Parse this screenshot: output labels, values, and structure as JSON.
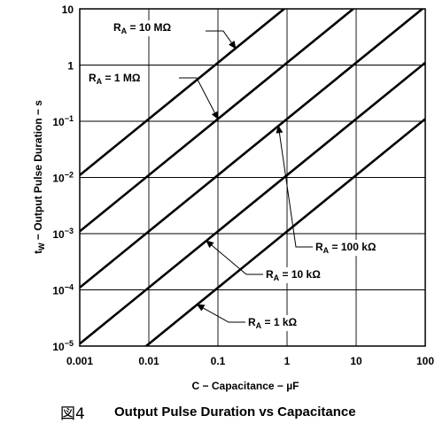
{
  "caption": {
    "figure_number": "図4",
    "title": "Output Pulse Duration vs Capacitance"
  },
  "chart_data": {
    "type": "line",
    "xscale": "log",
    "yscale": "log",
    "xlim": [
      0.001,
      100
    ],
    "ylim": [
      1e-05,
      10
    ],
    "grid": true,
    "xlabel": "C − Capacitance − µF",
    "ylabel": {
      "main": "t",
      "sub": "W",
      "rest": " − Output Pulse Duration − s"
    },
    "x_ticks": [
      {
        "value": 0.001,
        "label": "0.001"
      },
      {
        "value": 0.01,
        "label": "0.01"
      },
      {
        "value": 0.1,
        "label": "0.1"
      },
      {
        "value": 1,
        "label": "1"
      },
      {
        "value": 10,
        "label": "10"
      },
      {
        "value": 100,
        "label": "100"
      }
    ],
    "y_ticks": [
      {
        "value": 10,
        "base": "10",
        "exp": ""
      },
      {
        "value": 1,
        "base": "1",
        "exp": ""
      },
      {
        "value": 0.1,
        "base": "10",
        "exp": "−1"
      },
      {
        "value": 0.01,
        "base": "10",
        "exp": "−2"
      },
      {
        "value": 0.001,
        "base": "10",
        "exp": "−3"
      },
      {
        "value": 0.0001,
        "base": "10",
        "exp": "−4"
      },
      {
        "value": 1e-05,
        "base": "10",
        "exp": "−5"
      }
    ],
    "series": [
      {
        "name": "RA = 10 MΩ",
        "label": {
          "pre": "R",
          "sub": "A",
          "post": " = 10 MΩ"
        },
        "x": [
          0.001,
          1
        ],
        "y": [
          0.011,
          11
        ]
      },
      {
        "name": "RA = 1 MΩ",
        "label": {
          "pre": "R",
          "sub": "A",
          "post": " = 1 MΩ"
        },
        "x": [
          0.001,
          10
        ],
        "y": [
          0.0011,
          11
        ]
      },
      {
        "name": "RA = 100 kΩ",
        "label": {
          "pre": "R",
          "sub": "A",
          "post": " = 100 kΩ"
        },
        "x": [
          0.001,
          100
        ],
        "y": [
          0.00011,
          11
        ]
      },
      {
        "name": "RA = 10 kΩ",
        "label": {
          "pre": "R",
          "sub": "A",
          "post": " = 10 kΩ"
        },
        "x": [
          0.001,
          100
        ],
        "y": [
          1.1e-05,
          1.1
        ]
      },
      {
        "name": "RA = 1 kΩ",
        "label": {
          "pre": "R",
          "sub": "A",
          "post": " = 1 kΩ"
        },
        "x": [
          0.0011,
          100
        ],
        "y": [
          1.2e-06,
          0.11
        ]
      }
    ]
  }
}
